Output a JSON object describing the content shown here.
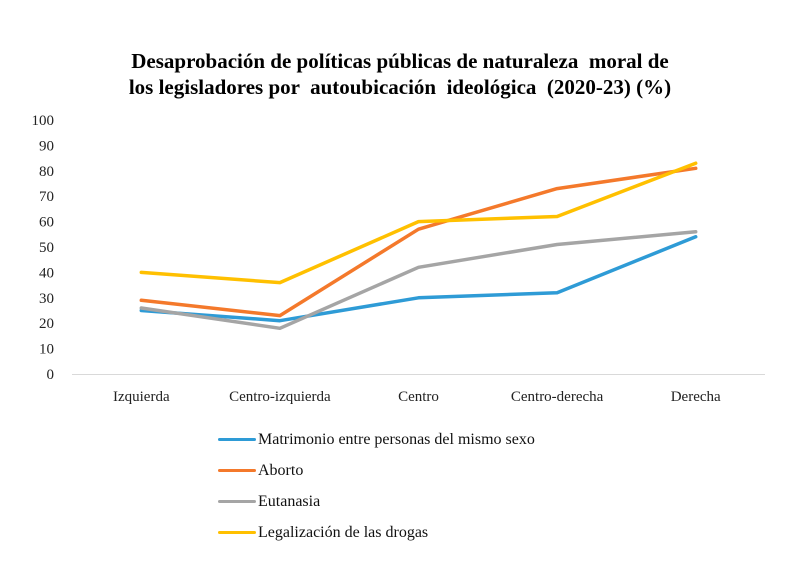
{
  "chart_data": {
    "type": "line",
    "title_lines": [
      "Desaprobación de políticas públicas de naturaleza  moral de",
      "los legisladores por  autoubicación  ideológica  (2020-23) (%)"
    ],
    "xlabel": "",
    "ylabel": "",
    "categories": [
      "Izquierda",
      "Centro-izquierda",
      "Centro",
      "Centro-derecha",
      "Derecha"
    ],
    "yticks": [
      "0",
      "10",
      "20",
      "30",
      "40",
      "50",
      "60",
      "70",
      "80",
      "90",
      "100"
    ],
    "ylim": [
      0,
      100
    ],
    "grid": false,
    "legend_position": "bottom",
    "series": [
      {
        "name": "Matrimonio entre personas del mismo sexo",
        "color": "#2E9BD6",
        "values": [
          25,
          21,
          30,
          32,
          54
        ]
      },
      {
        "name": "Aborto",
        "color": "#F4792B",
        "values": [
          29,
          23,
          57,
          73,
          81
        ]
      },
      {
        "name": "Eutanasia",
        "color": "#A5A5A5",
        "values": [
          26,
          18,
          42,
          51,
          56
        ]
      },
      {
        "name": "Legalización de las drogas",
        "color": "#FFC000",
        "values": [
          40,
          36,
          60,
          62,
          83
        ]
      }
    ]
  }
}
